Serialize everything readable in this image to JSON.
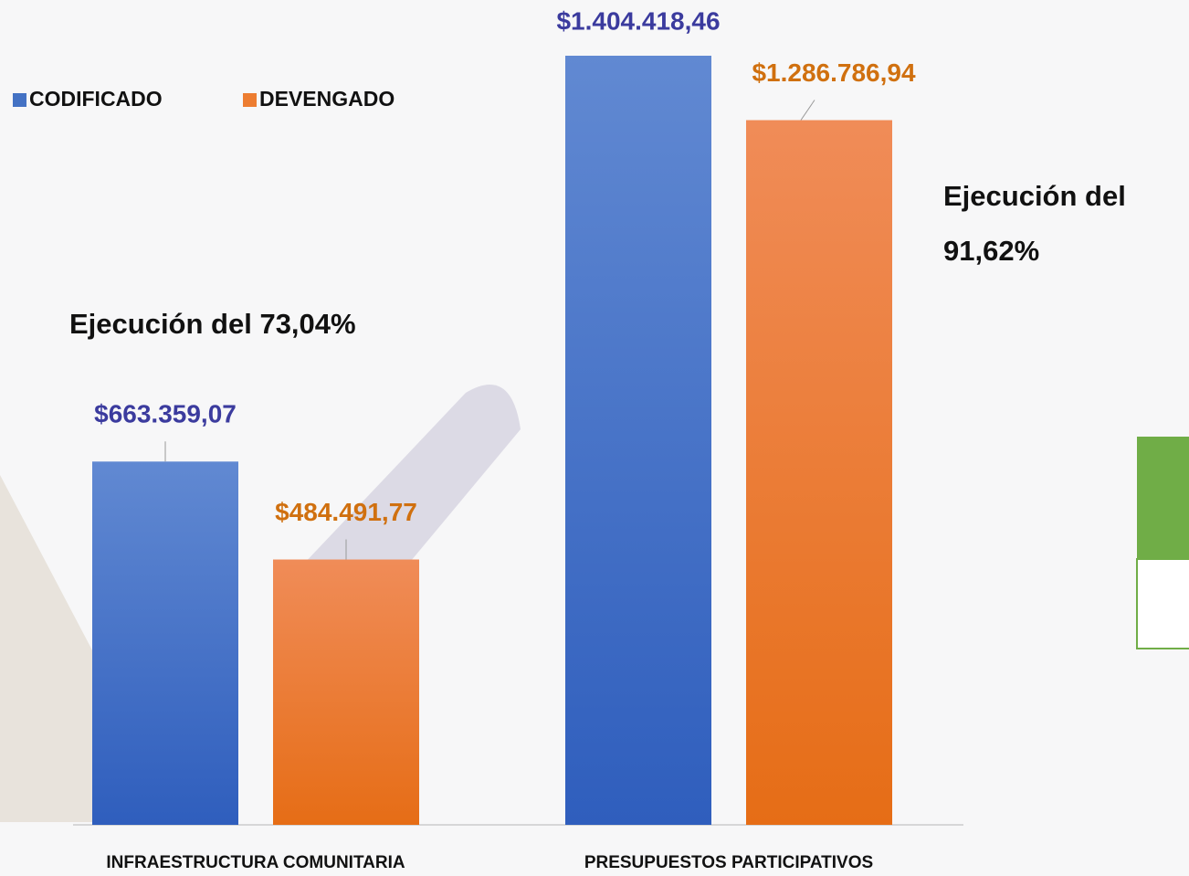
{
  "chart_data": {
    "type": "bar",
    "categories": [
      "INFRAESTRUCTURA COMUNITARIA",
      "PRESUPUESTOS PARTICIPATIVOS"
    ],
    "series": [
      {
        "name": "CODIFICADO",
        "color": "#4472c4",
        "label_color": "#3b3b9e",
        "values": [
          663359.07,
          1404418.46
        ],
        "value_labels": [
          "$663.359,07",
          "$1.404.418,46"
        ]
      },
      {
        "name": "DEVENGADO",
        "color": "#ed7d31",
        "label_color": "#d0700f",
        "values": [
          484491.77,
          1286786.94
        ],
        "value_labels": [
          "$484.491,77",
          "$1.286.786,94"
        ]
      }
    ],
    "annotations": [
      "Ejecución del 73,04%",
      "Ejecución del 91,62%"
    ],
    "legend": "top-left"
  }
}
